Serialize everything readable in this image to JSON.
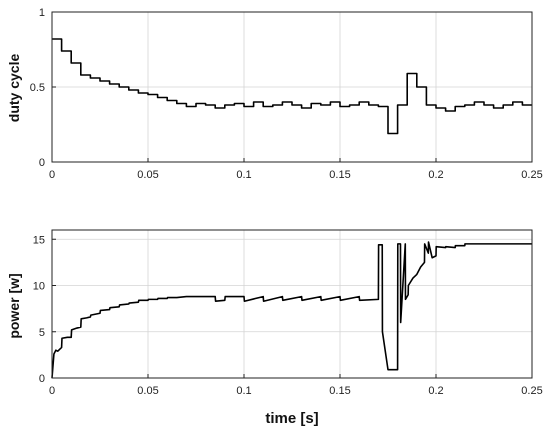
{
  "chart_data": [
    {
      "type": "line",
      "ylabel": "duty cycle",
      "xlabel": "",
      "xlim": [
        0,
        0.25
      ],
      "ylim": [
        0,
        1
      ],
      "xticks": [
        "0",
        "0.05",
        "0.1",
        "0.15",
        "0.2",
        "0.25"
      ],
      "yticks": [
        "0",
        "0.5",
        "1"
      ],
      "grid": true,
      "series": [
        {
          "step": true,
          "x": [
            0,
            0.005,
            0.01,
            0.015,
            0.02,
            0.025,
            0.03,
            0.035,
            0.04,
            0.045,
            0.05,
            0.055,
            0.06,
            0.065,
            0.07,
            0.075,
            0.08,
            0.085,
            0.09,
            0.095,
            0.1,
            0.105,
            0.11,
            0.115,
            0.12,
            0.125,
            0.13,
            0.135,
            0.14,
            0.145,
            0.15,
            0.155,
            0.16,
            0.165,
            0.17,
            0.175,
            0.18,
            0.185,
            0.19,
            0.195,
            0.2,
            0.205,
            0.21,
            0.215,
            0.22,
            0.225,
            0.23,
            0.235,
            0.24,
            0.245,
            0.25
          ],
          "y": [
            0.82,
            0.74,
            0.66,
            0.58,
            0.56,
            0.54,
            0.52,
            0.5,
            0.48,
            0.46,
            0.45,
            0.43,
            0.41,
            0.39,
            0.37,
            0.39,
            0.38,
            0.36,
            0.38,
            0.39,
            0.37,
            0.4,
            0.37,
            0.38,
            0.4,
            0.38,
            0.36,
            0.39,
            0.38,
            0.4,
            0.37,
            0.38,
            0.4,
            0.38,
            0.37,
            0.19,
            0.38,
            0.59,
            0.5,
            0.38,
            0.36,
            0.34,
            0.37,
            0.38,
            0.4,
            0.38,
            0.36,
            0.38,
            0.4,
            0.38,
            0.38
          ]
        }
      ]
    },
    {
      "type": "line",
      "ylabel": "power [w]",
      "xlabel": "time [s]",
      "xlim": [
        0,
        0.25
      ],
      "ylim": [
        0,
        16
      ],
      "xticks": [
        "0",
        "0.05",
        "0.1",
        "0.15",
        "0.2",
        "0.25"
      ],
      "yticks": [
        "0",
        "5",
        "10",
        "15"
      ],
      "grid": true,
      "series": [
        {
          "step": false,
          "x": [
            0,
            0.001,
            0.002,
            0.003,
            0.005,
            0.0052,
            0.008,
            0.01,
            0.0102,
            0.013,
            0.015,
            0.0152,
            0.018,
            0.02,
            0.0202,
            0.025,
            0.0252,
            0.03,
            0.0302,
            0.035,
            0.0352,
            0.04,
            0.0402,
            0.045,
            0.0452,
            0.05,
            0.0502,
            0.055,
            0.0552,
            0.06,
            0.0602,
            0.065,
            0.07,
            0.08,
            0.085,
            0.0852,
            0.09,
            0.0902,
            0.1,
            0.1002,
            0.11,
            0.1102,
            0.12,
            0.1202,
            0.13,
            0.1302,
            0.14,
            0.1402,
            0.15,
            0.1502,
            0.16,
            0.1602,
            0.17,
            0.1701,
            0.172,
            0.1721,
            0.175,
            0.1751,
            0.18,
            0.1801,
            0.1815,
            0.1816,
            0.184,
            0.1841,
            0.1855,
            0.1856,
            0.188,
            0.19,
            0.192,
            0.194,
            0.1941,
            0.196,
            0.1961,
            0.198,
            0.2,
            0.2001,
            0.205,
            0.2051,
            0.21,
            0.2101,
            0.215,
            0.2151,
            0.22,
            0.2201,
            0.225,
            0.2251,
            0.23,
            0.2301,
            0.235,
            0.2351,
            0.24,
            0.2401,
            0.245,
            0.2451,
            0.25
          ],
          "y": [
            0,
            2.6,
            3.0,
            2.9,
            3.3,
            4.3,
            4.4,
            4.4,
            5.2,
            5.4,
            5.5,
            6.4,
            6.5,
            6.6,
            6.8,
            7.0,
            7.3,
            7.4,
            7.6,
            7.7,
            7.9,
            8.0,
            8.1,
            8.2,
            8.4,
            8.4,
            8.5,
            8.5,
            8.6,
            8.6,
            8.7,
            8.7,
            8.8,
            8.8,
            8.8,
            8.3,
            8.4,
            8.8,
            8.8,
            8.3,
            8.8,
            8.3,
            8.8,
            8.4,
            8.8,
            8.4,
            8.8,
            8.4,
            8.8,
            8.4,
            8.8,
            8.4,
            8.5,
            14.4,
            14.4,
            5.0,
            0.9,
            0.9,
            0.9,
            14.5,
            14.5,
            6.0,
            14.5,
            8.5,
            9.0,
            10.0,
            10.8,
            11.2,
            12.0,
            12.5,
            14.5,
            13.5,
            14.7,
            13.0,
            13.2,
            14.2,
            14.1,
            14.2,
            14.1,
            14.3,
            14.3,
            14.5,
            14.5,
            14.5,
            14.5,
            14.5,
            14.5,
            14.5,
            14.5,
            14.5,
            14.5,
            14.5,
            14.5,
            14.5,
            14.5
          ]
        }
      ]
    }
  ]
}
